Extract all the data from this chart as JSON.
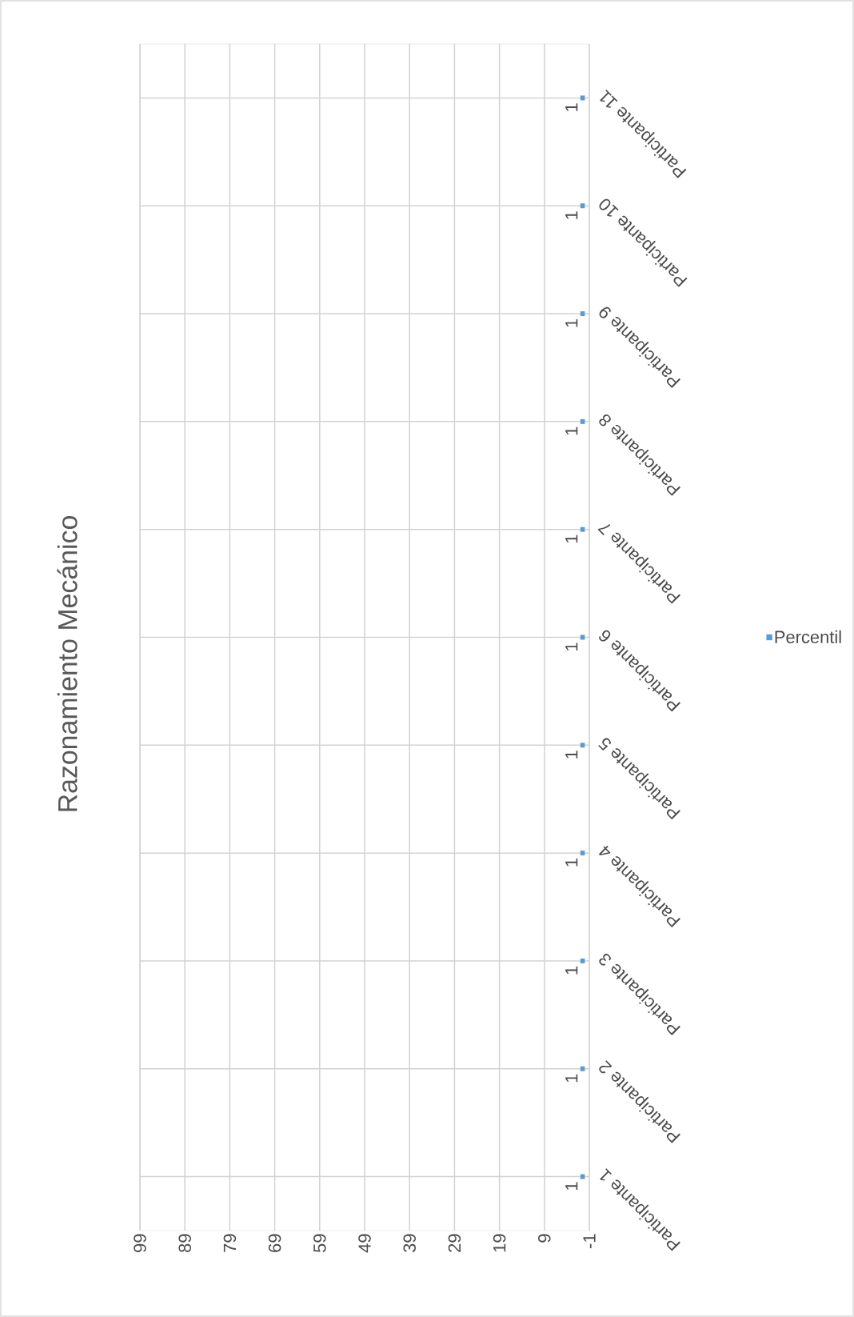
{
  "chart_data": {
    "type": "bar",
    "orientation": "horizontal",
    "title": "Razonamiento Mecánico",
    "categories": [
      "Participante 11",
      "Participante 10",
      "Participante 9",
      "Participante 8",
      "Participante 7",
      "Participante 6",
      "Participante 5",
      "Participante 4",
      "Participante 3",
      "Participante 2",
      "Participante 1"
    ],
    "series": [
      {
        "name": "Percentil",
        "color": "#5b9bd5",
        "values": [
          1,
          1,
          1,
          1,
          1,
          1,
          1,
          1,
          1,
          1,
          1
        ]
      }
    ],
    "xlim": [
      99,
      -1
    ],
    "xticks": [
      99,
      89,
      79,
      69,
      59,
      49,
      39,
      29,
      19,
      9,
      -1
    ],
    "data_labels": true,
    "grid": true,
    "legend": "right"
  }
}
